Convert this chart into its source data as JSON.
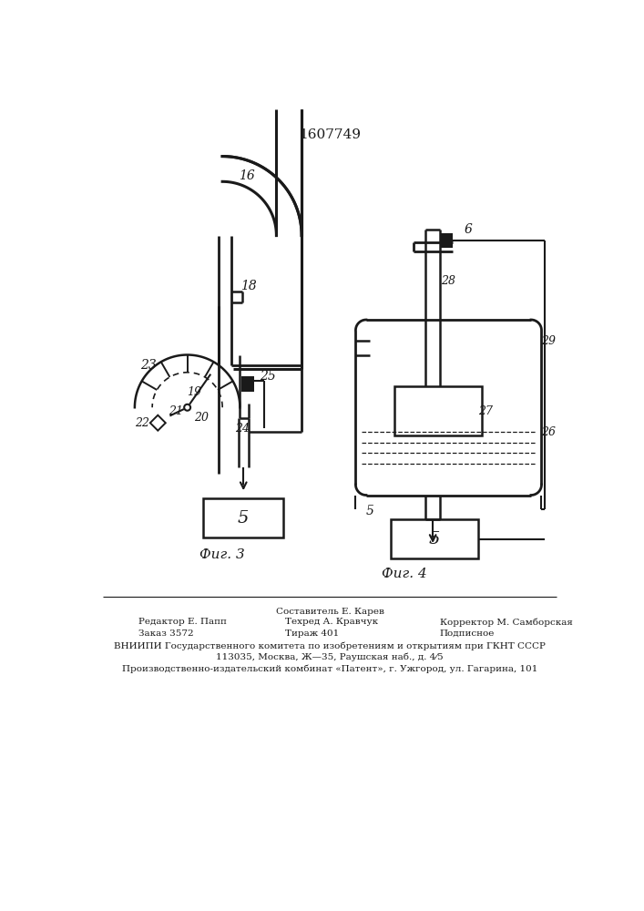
{
  "title": "1607749",
  "background_color": "#ffffff",
  "line_color": "#1a1a1a",
  "fig3_caption": "Фиг. 3",
  "fig4_caption": "Фиг. 4",
  "footer_line0": "Составитель Е. Карев",
  "footer_line1a": "Редактор Е. Папп",
  "footer_line1b": "Техред А. Кравчук",
  "footer_line1c": "Корректор М. Самборская",
  "footer_line2a": "Заказ 3572",
  "footer_line2b": "Тираж 401",
  "footer_line2c": "Подписное",
  "footer_line3": "ВНИИПИ Государственного комитета по изобретениям и открытиям при ГКНТ СССР",
  "footer_line4": "113035, Москва, Ж—35, Раушская наб., д. 4⁄5",
  "footer_line5": "Производственно-издательский комбинат «Патент», г. Ужгород, ул. Гагарина, 101"
}
